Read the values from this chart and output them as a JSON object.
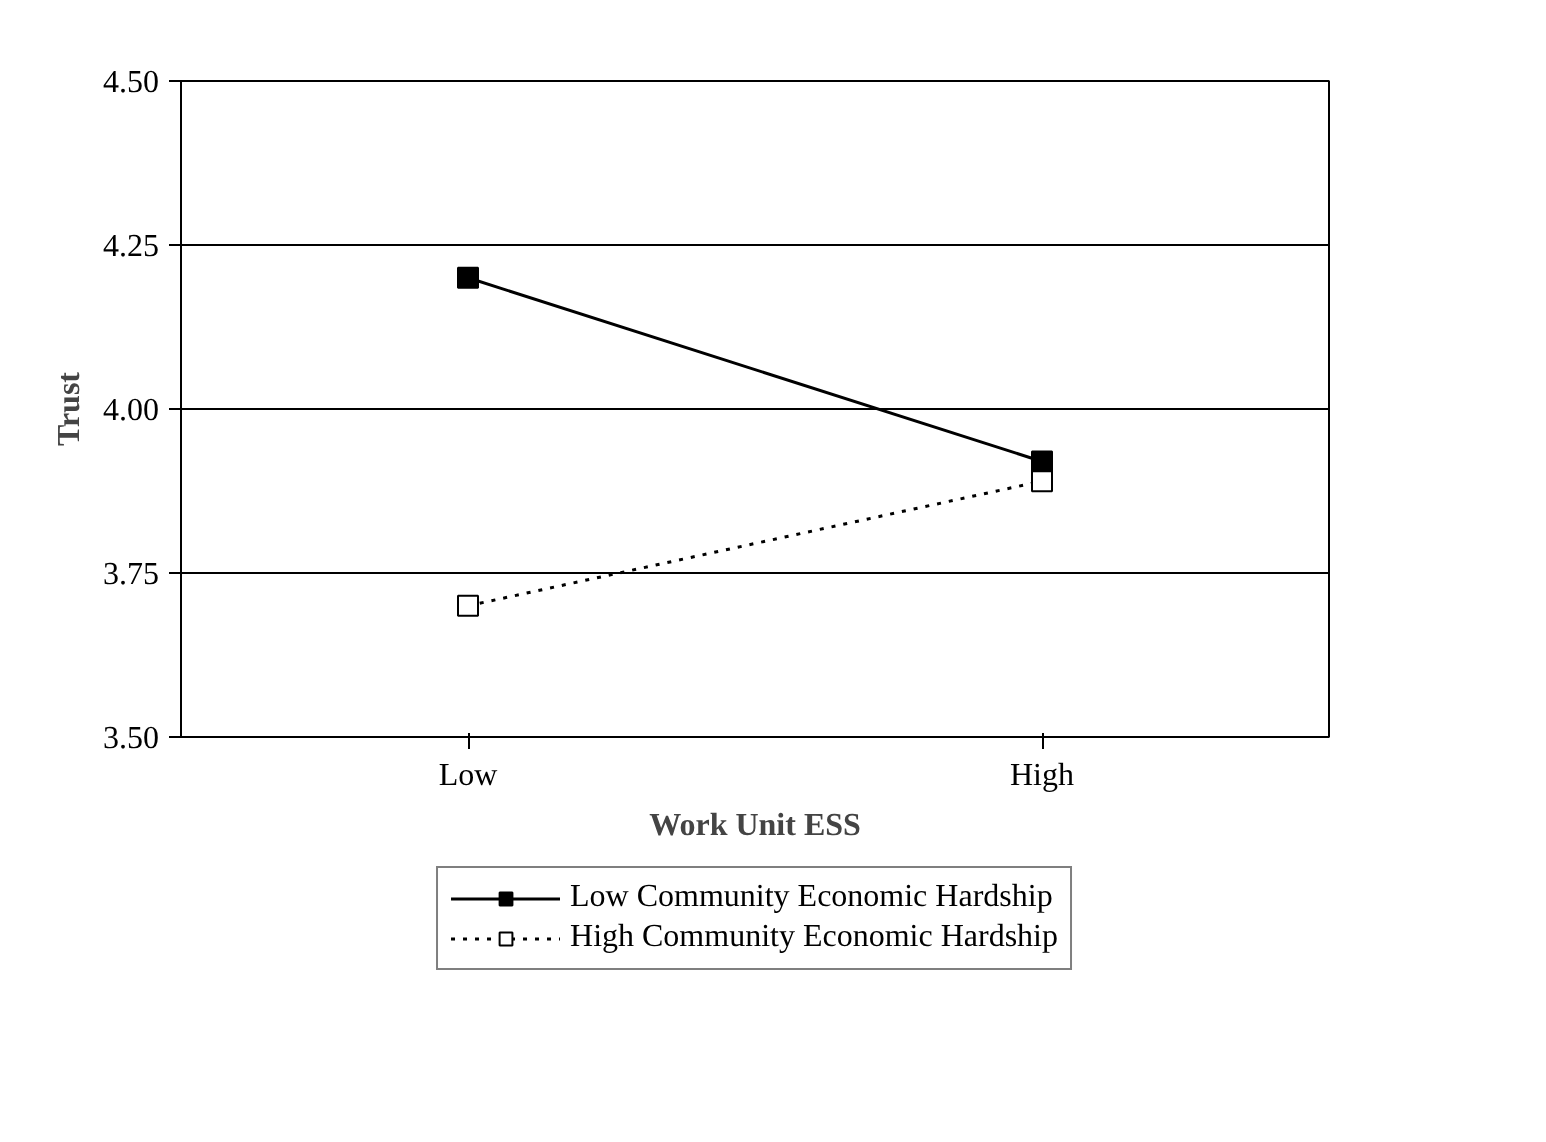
{
  "chart_data": {
    "type": "line",
    "categories": [
      "Low",
      "High"
    ],
    "xlabel": "Work Unit ESS",
    "ylabel": "Trust",
    "ylim": [
      3.5,
      4.5
    ],
    "yticks": [
      {
        "value": 3.5,
        "label": "3.50"
      },
      {
        "value": 3.75,
        "label": "3.75"
      },
      {
        "value": 4.0,
        "label": "4.00"
      },
      {
        "value": 4.25,
        "label": "4.25"
      },
      {
        "value": 4.5,
        "label": "4.50"
      }
    ],
    "grid": "y",
    "legend": "bottom",
    "marker": "square",
    "series": [
      {
        "name": "Low Community Economic Hardship",
        "color": "#000000",
        "values": [
          4.2,
          3.92
        ],
        "line_style": "solid"
      },
      {
        "name": "High Community Economic Hardship",
        "color": "#000000",
        "values": [
          3.7,
          3.89
        ],
        "line_style": "dotted"
      }
    ]
  }
}
